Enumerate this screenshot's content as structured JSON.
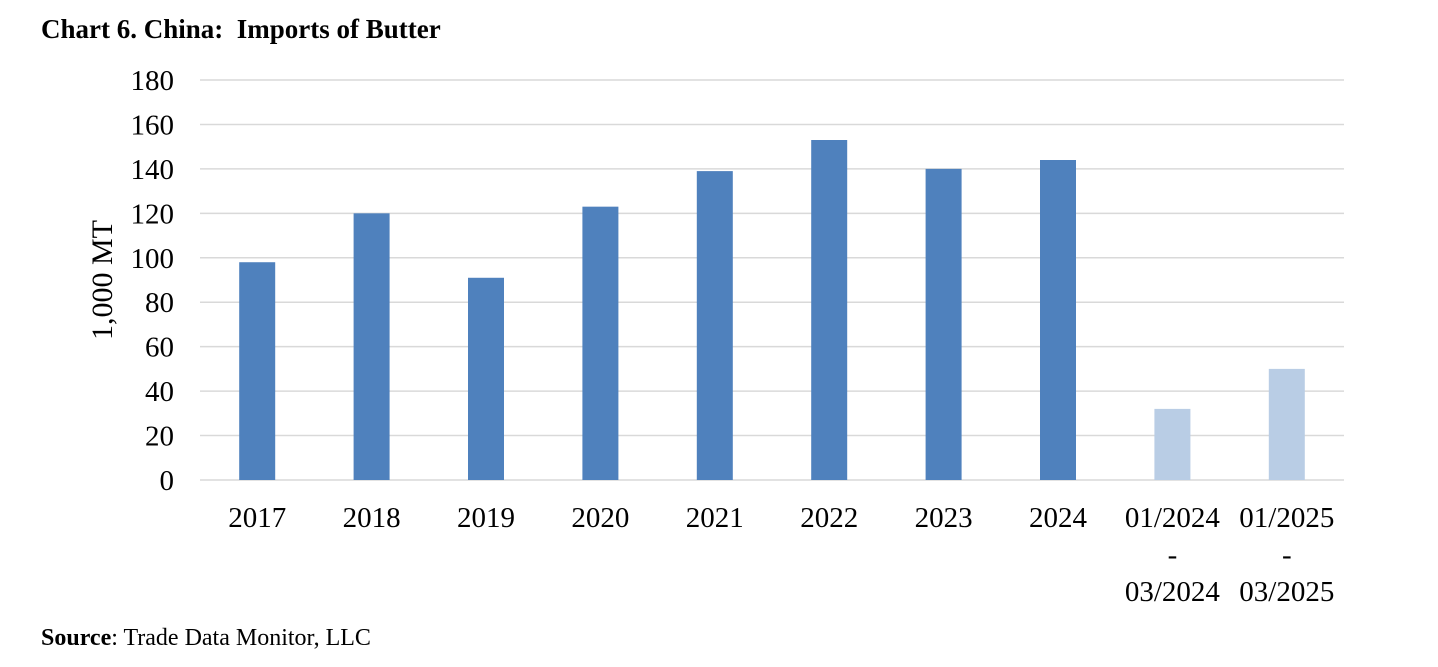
{
  "chart_data": {
    "type": "bar",
    "title": "Chart 6. China:  Imports of Butter",
    "ylabel": "1,000 MT",
    "xlabel": "",
    "ylim": [
      0,
      180
    ],
    "yticks": [
      0,
      20,
      40,
      60,
      80,
      100,
      120,
      140,
      160,
      180
    ],
    "grid": true,
    "categories": [
      "2017",
      "2018",
      "2019",
      "2020",
      "2021",
      "2022",
      "2023",
      "2024",
      "01/2024 - 03/2024",
      "01/2025 - 03/2025"
    ],
    "category_lines": [
      [
        "2017"
      ],
      [
        "2018"
      ],
      [
        "2019"
      ],
      [
        "2020"
      ],
      [
        "2021"
      ],
      [
        "2022"
      ],
      [
        "2023"
      ],
      [
        "2024"
      ],
      [
        "01/2024",
        "-",
        "03/2024"
      ],
      [
        "01/2025",
        "-",
        "03/2025"
      ]
    ],
    "values": [
      98,
      120,
      91,
      123,
      139,
      153,
      140,
      144,
      32,
      50
    ],
    "colors": {
      "annual": "#4f81bd",
      "partial": "#b9cde5",
      "grid": "#d9d9d9"
    }
  },
  "source": {
    "label": "Source",
    "text": ": Trade Data Monitor, LLC"
  }
}
